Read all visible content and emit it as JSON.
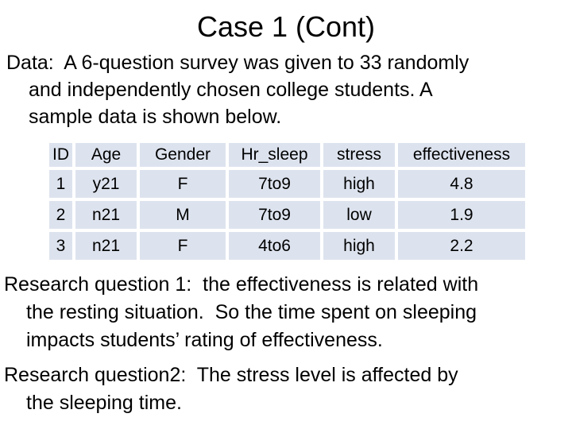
{
  "title": "Case 1 (Cont)",
  "intro": {
    "lines": [
      {
        "text": "Data:  A 6-question survey was given to 33 randomly"
      },
      {
        "text": "and independently chosen college students. A"
      },
      {
        "text": "sample data is shown below."
      }
    ]
  },
  "table": {
    "cell_fill": "#dde3ee",
    "headers": [
      "ID",
      "Age",
      "Gender",
      "Hr_sleep",
      "stress",
      "effectiveness"
    ],
    "rows": [
      [
        "1",
        "y21",
        "F",
        "7to9",
        "high",
        "4.8"
      ],
      [
        "2",
        "n21",
        "M",
        "7to9",
        "low",
        "1.9"
      ],
      [
        "3",
        "n21",
        "F",
        "4to6",
        "high",
        "2.2"
      ]
    ]
  },
  "research": {
    "paragraphs": [
      {
        "lines": [
          {
            "text": "Research question 1:  the effectiveness is related with"
          },
          {
            "text": "the resting situation.  So the time spent on sleeping"
          },
          {
            "text": "impacts students’ rating of effectiveness."
          }
        ]
      },
      {
        "lines": [
          {
            "text": "Research question2:  The stress level is affected by"
          },
          {
            "text": "the sleeping time."
          }
        ]
      }
    ]
  }
}
